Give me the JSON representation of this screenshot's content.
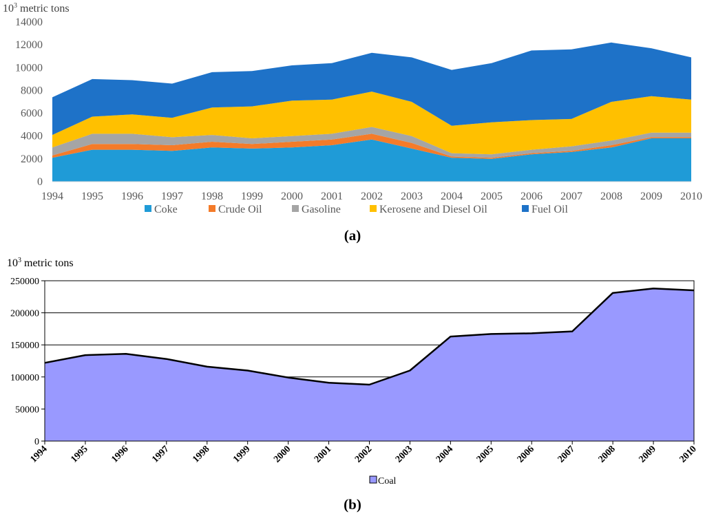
{
  "chart_data": [
    {
      "type": "area",
      "stacked": true,
      "panel_label": "a",
      "ylabel_base": "10",
      "ylabel_exp": "3",
      "ylabel_unit": "metric tons",
      "x": [
        "1994",
        "1995",
        "1996",
        "1997",
        "1998",
        "1999",
        "2000",
        "2001",
        "2002",
        "2003",
        "2004",
        "2005",
        "2006",
        "2007",
        "2008",
        "2009",
        "2010"
      ],
      "ylim": [
        0,
        14000
      ],
      "yticks": [
        0,
        2000,
        4000,
        6000,
        8000,
        10000,
        12000,
        14000
      ],
      "ytick_labels": [
        "0",
        "2000",
        "4000",
        "6000",
        "8000",
        "10000",
        "12000",
        "14000"
      ],
      "grid": false,
      "legend_position": "bottom",
      "series": [
        {
          "name": "Coke",
          "color": "#1f9bd7",
          "values": [
            2100,
            2800,
            2800,
            2700,
            3000,
            2900,
            3000,
            3200,
            3700,
            2900,
            2100,
            2000,
            2400,
            2600,
            3000,
            3800,
            3800
          ]
        },
        {
          "name": "Crude Oil",
          "color": "#f47b29",
          "values": [
            200,
            500,
            500,
            500,
            500,
            400,
            500,
            500,
            500,
            500,
            100,
            100,
            100,
            100,
            200,
            100,
            100
          ]
        },
        {
          "name": "Gasoline",
          "color": "#a5a5a5",
          "values": [
            700,
            900,
            900,
            700,
            600,
            500,
            500,
            500,
            600,
            600,
            300,
            300,
            300,
            400,
            400,
            400,
            400
          ]
        },
        {
          "name": "Kerosene and Diesel Oil",
          "color": "#ffc000",
          "values": [
            1100,
            1500,
            1700,
            1700,
            2400,
            2800,
            3100,
            3000,
            3100,
            3000,
            2400,
            2800,
            2600,
            2400,
            3400,
            3200,
            2900
          ]
        },
        {
          "name": "Fuel Oil",
          "color": "#1e72c8",
          "values": [
            3300,
            3300,
            3000,
            3000,
            3100,
            3100,
            3100,
            3200,
            3400,
            3900,
            4900,
            5200,
            6100,
            6100,
            5200,
            4200,
            3700
          ]
        }
      ]
    },
    {
      "type": "area",
      "stacked": false,
      "panel_label": "b",
      "ylabel_base": "10",
      "ylabel_exp": "3",
      "ylabel_unit": "metric tons",
      "x": [
        "1994",
        "1995",
        "1996",
        "1997",
        "1998",
        "1999",
        "2000",
        "2001",
        "2002",
        "2003",
        "2004",
        "2005",
        "2006",
        "2007",
        "2008",
        "2009",
        "2010"
      ],
      "ylim": [
        0,
        250000
      ],
      "yticks": [
        0,
        50000,
        100000,
        150000,
        200000,
        250000
      ],
      "ytick_labels": [
        "0",
        "50000",
        "100000",
        "150000",
        "200000",
        "250000"
      ],
      "grid": true,
      "legend_position": "bottom",
      "series": [
        {
          "name": "Coal",
          "color": "#9999ff",
          "values": [
            122000,
            134000,
            136000,
            128000,
            116000,
            110000,
            99000,
            91000,
            88000,
            110000,
            163000,
            167000,
            168000,
            171000,
            231000,
            238000,
            235000
          ]
        }
      ]
    }
  ]
}
